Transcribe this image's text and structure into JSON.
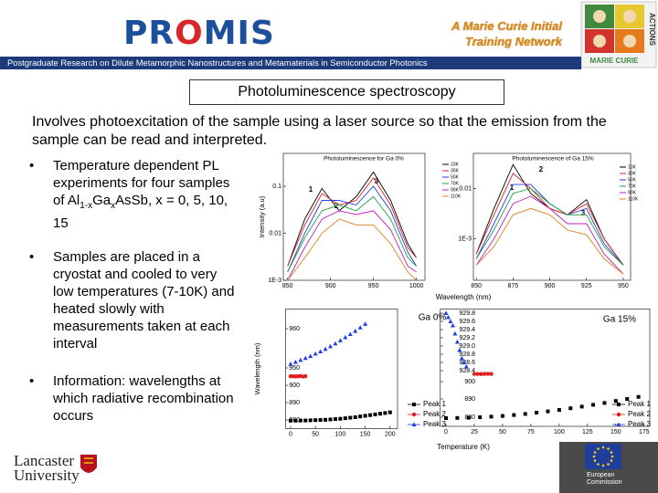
{
  "header": {
    "logo": [
      "PR",
      "O",
      "MIS"
    ],
    "network": [
      "A Marie Curie Initial",
      "Training Network"
    ],
    "strapline": "Postgraduate Research on Dilute Metamorphic Nanostructures and Metamaterials in Semiconductor Photonics",
    "badge": [
      "ACTIONS",
      "MARIE CURIE"
    ]
  },
  "slide": {
    "title": "Photoluminescence spectroscopy",
    "intro": "Involves photoexcitation of the sample using a laser source so that the emission from the sample can be read and interpreted.",
    "bullets": {
      "first": [
        "Temperature dependent PL experiments for four samples of Al",
        "1-x",
        "Ga",
        "x",
        "AsSb, x = 0, 5, 10, 15"
      ],
      "second": "Samples are placed in a cryostat and cooled to very low temperatures (7-10K) and heated slowly with measurements taken at each interval",
      "third": "Information: wavelengths at which radiative recombination occurs"
    }
  },
  "chart_data": [
    {
      "type": "line",
      "title": "Photoluminescence for Ga 0%",
      "ylabel": "Intensity (a.u)",
      "log_y": true,
      "x": [
        850,
        870,
        890,
        910,
        930,
        950,
        970,
        990,
        1000
      ],
      "xlim": [
        845,
        1010
      ],
      "xticks": [
        850,
        900,
        950,
        1000
      ],
      "ylim": [
        0.001,
        0.5
      ],
      "yticks": [
        {
          "value": 0.001,
          "label": "1E-3"
        },
        0.01,
        0.1
      ],
      "annotations": [
        "1",
        "2",
        "3"
      ],
      "series": [
        {
          "name": "10K",
          "color": "#000000",
          "values": [
            0.002,
            0.02,
            0.09,
            0.03,
            0.06,
            0.2,
            0.05,
            0.006,
            0.003
          ]
        },
        {
          "name": "30K",
          "color": "#e02020",
          "values": [
            0.002,
            0.015,
            0.07,
            0.04,
            0.05,
            0.15,
            0.04,
            0.005,
            0.003
          ]
        },
        {
          "name": "50K",
          "color": "#2040e0",
          "values": [
            0.0015,
            0.01,
            0.05,
            0.05,
            0.04,
            0.1,
            0.03,
            0.004,
            0.002
          ]
        },
        {
          "name": "70K",
          "color": "#20a040",
          "values": [
            0.0015,
            0.008,
            0.03,
            0.04,
            0.03,
            0.06,
            0.02,
            0.003,
            0.002
          ]
        },
        {
          "name": "90K",
          "color": "#c020c0",
          "values": [
            0.001,
            0.005,
            0.02,
            0.03,
            0.025,
            0.03,
            0.012,
            0.002,
            0.0015
          ]
        },
        {
          "name": "110K",
          "color": "#e08020",
          "values": [
            0.001,
            0.003,
            0.01,
            0.02,
            0.015,
            0.015,
            0.006,
            0.0015,
            0.001
          ]
        }
      ]
    },
    {
      "type": "line",
      "title": "Photoluminescence of Ga 15%",
      "xlabel": "Wavelength (nm)",
      "log_y": true,
      "x": [
        850,
        862,
        875,
        887,
        900,
        912,
        925,
        937,
        950
      ],
      "xlim": [
        848,
        955
      ],
      "xticks": [
        850,
        875,
        900,
        925,
        950
      ],
      "ylim": [
        0.00015,
        0.05
      ],
      "yticks": [
        {
          "value": 0.001,
          "label": "1E-3"
        },
        0.01
      ],
      "annotations": [
        "2",
        "1",
        "3"
      ],
      "series": [
        {
          "name": "10K",
          "color": "#000000",
          "values": [
            0.0005,
            0.004,
            0.03,
            0.008,
            0.004,
            0.003,
            0.006,
            0.001,
            0.0003
          ]
        },
        {
          "name": "30K",
          "color": "#e02020",
          "values": [
            0.0005,
            0.003,
            0.02,
            0.01,
            0.004,
            0.003,
            0.005,
            0.001,
            0.0003
          ]
        },
        {
          "name": "50K",
          "color": "#2040e0",
          "values": [
            0.0004,
            0.002,
            0.012,
            0.012,
            0.005,
            0.003,
            0.004,
            0.0008,
            0.0003
          ]
        },
        {
          "name": "70K",
          "color": "#20a040",
          "values": [
            0.0004,
            0.0015,
            0.008,
            0.01,
            0.005,
            0.003,
            0.003,
            0.0007,
            0.0003
          ]
        },
        {
          "name": "90K",
          "color": "#c020c0",
          "values": [
            0.0003,
            0.001,
            0.005,
            0.007,
            0.004,
            0.002,
            0.002,
            0.0005,
            0.0002
          ]
        },
        {
          "name": "110K",
          "color": "#e08020",
          "values": [
            0.0003,
            0.0007,
            0.003,
            0.004,
            0.003,
            0.0015,
            0.0012,
            0.0004,
            0.0002
          ]
        }
      ]
    },
    {
      "type": "scatter",
      "ylabel": "Wavelength (nm)",
      "annotations": [
        "Ga 0%"
      ],
      "legend": "lower right",
      "xlim": [
        -10,
        215
      ],
      "xticks": [
        0,
        50,
        100,
        150,
        200
      ],
      "ylim": [
        875,
        965
      ],
      "yticks": [
        880,
        890,
        900,
        950,
        960
      ],
      "series": [
        {
          "name": "Peak 1",
          "color": "#000000",
          "marker": "square",
          "x": [
            0,
            10,
            20,
            30,
            40,
            50,
            60,
            70,
            80,
            90,
            100,
            110,
            120,
            130,
            140,
            150,
            160,
            170,
            180,
            190,
            200
          ],
          "values": [
            879.6,
            879.6,
            879.7,
            879.7,
            879.8,
            879.9,
            880,
            880.1,
            880.3,
            880.5,
            880.7,
            881,
            881.3,
            881.6,
            882,
            882.4,
            882.8,
            883.2,
            883.6,
            884,
            884.4
          ]
        },
        {
          "name": "Peak 2",
          "color": "#e02020",
          "marker": "circle",
          "x": [
            0,
            5,
            10,
            15,
            20,
            25,
            30
          ],
          "values": [
            926,
            926,
            925.5,
            926,
            926.5,
            925,
            926
          ]
        },
        {
          "name": "Peak 3",
          "color": "#2040e0",
          "marker": "triangle",
          "x": [
            0,
            10,
            20,
            30,
            40,
            50,
            60,
            70,
            80,
            90,
            100,
            110,
            120,
            130,
            140,
            150
          ],
          "values": [
            951,
            951.5,
            952,
            952.5,
            953,
            953.6,
            954.2,
            954.8,
            955.5,
            956.2,
            957,
            957.8,
            958.6,
            959.4,
            960.3,
            961.2
          ]
        }
      ]
    },
    {
      "type": "scatter",
      "xlabel": "Temperature (K)",
      "annotations": [
        "Ga 15%"
      ],
      "legend": "lower right",
      "xlim": [
        -5,
        180
      ],
      "xticks": [
        0,
        25,
        50,
        75,
        100,
        125,
        150,
        175
      ],
      "ylim": [
        875,
        929.9
      ],
      "yticks": [
        880,
        890,
        900,
        928.4,
        928.6,
        928.8,
        {
          "value": 929,
          "label": "929.0"
        },
        929.2,
        929.4,
        929.6,
        929.8
      ],
      "series": [
        {
          "name": "Peak 1",
          "color": "#000000",
          "marker": "square",
          "x": [
            0,
            10,
            20,
            30,
            40,
            50,
            60,
            70,
            80,
            90,
            100,
            110,
            120,
            130,
            140,
            150,
            160,
            170
          ],
          "values": [
            879.5,
            879.6,
            879.7,
            880,
            880.3,
            880.7,
            881.2,
            881.8,
            882.5,
            883.2,
            884,
            884.9,
            885.8,
            886.8,
            887.8,
            888.9,
            890,
            891.2
          ]
        },
        {
          "name": "Peak 2",
          "color": "#e02020",
          "marker": "circle",
          "x": [
            25,
            28,
            31,
            34,
            37,
            40
          ],
          "values": [
            920,
            920,
            919.8,
            920,
            920.2,
            920
          ]
        },
        {
          "name": "Peak 3",
          "color": "#2040e0",
          "marker": "triangle",
          "x": [
            0,
            2,
            4,
            6,
            8,
            10,
            12,
            14,
            16,
            18
          ],
          "values": [
            929.8,
            929.7,
            929.6,
            929.5,
            929.3,
            929.1,
            928.9,
            928.7,
            928.6,
            928.5
          ]
        }
      ]
    }
  ],
  "footer": {
    "left_logo": [
      "Lancaster",
      "University"
    ],
    "right_logo": [
      "European",
      "Commission"
    ]
  }
}
